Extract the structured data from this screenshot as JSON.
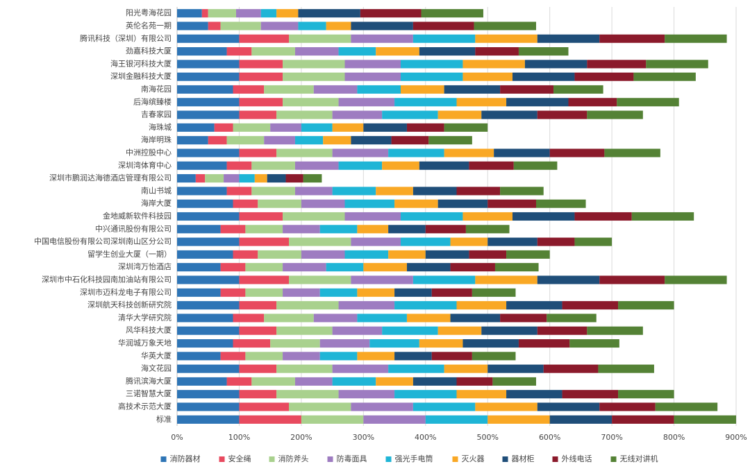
{
  "chart_data": {
    "type": "stacked_barh",
    "categories": [
      "阳光粤海花园",
      "英伦名苑一期",
      "腾讯科技（深圳）有限公司",
      "劲嘉科技大厦",
      "海王银河科技大厦",
      "深圳金融科技大厦",
      "南海花园",
      "后海缤臻楼",
      "吉春家园",
      "海珠城",
      "海岸明珠",
      "中洲控股中心",
      "深圳湾体育中心",
      "深圳市鹏润达海德酒店管理有限公司",
      "南山书城",
      "海岸大厦",
      "金地威新软件科技园",
      "中兴通讯股份有限公司",
      "中国电信股份有限公司深圳南山区分公司",
      "留学生创业大厦（一期）",
      "深圳湾万怡酒店",
      "深圳市中石化科技园南加油站有限公司",
      "深圳市迈科龙电子有限公司",
      "深圳航天科技创新研究院",
      "清华大学研究院",
      "风华科技大厦",
      "华润城万象天地",
      "华英大厦",
      "海文花园",
      "腾讯滨海大厦",
      "三诺智慧大厦",
      "高技术示范大厦",
      "标准"
    ],
    "series": [
      {
        "name": "消防器材",
        "color": "#2e75b6",
        "values": [
          40,
          50,
          100,
          80,
          100,
          100,
          90,
          100,
          100,
          60,
          50,
          100,
          80,
          30,
          80,
          90,
          100,
          70,
          100,
          90,
          70,
          100,
          70,
          100,
          90,
          100,
          90,
          70,
          100,
          80,
          100,
          100,
          100
        ]
      },
      {
        "name": "安全绳",
        "color": "#e84a5f",
        "values": [
          10,
          20,
          80,
          40,
          70,
          70,
          50,
          70,
          60,
          30,
          30,
          60,
          40,
          15,
          40,
          40,
          70,
          40,
          80,
          40,
          40,
          80,
          40,
          60,
          50,
          60,
          60,
          40,
          60,
          40,
          60,
          80,
          100
        ]
      },
      {
        "name": "消防斧头",
        "color": "#a9d18e",
        "values": [
          45,
          65,
          100,
          70,
          100,
          100,
          80,
          90,
          90,
          60,
          60,
          90,
          70,
          30,
          70,
          70,
          100,
          60,
          100,
          70,
          60,
          100,
          60,
          100,
          80,
          90,
          80,
          60,
          90,
          70,
          100,
          100,
          100
        ]
      },
      {
        "name": "防毒面具",
        "color": "#9e7cc1",
        "values": [
          40,
          60,
          100,
          70,
          90,
          90,
          70,
          90,
          80,
          50,
          50,
          90,
          70,
          25,
          60,
          70,
          90,
          60,
          80,
          70,
          70,
          100,
          60,
          90,
          70,
          80,
          80,
          60,
          90,
          60,
          90,
          100,
          100
        ]
      },
      {
        "name": "强光手电筒",
        "color": "#1fb5d6",
        "values": [
          25,
          45,
          100,
          60,
          100,
          100,
          70,
          100,
          90,
          50,
          45,
          90,
          70,
          25,
          70,
          80,
          100,
          60,
          80,
          70,
          60,
          100,
          60,
          100,
          80,
          90,
          80,
          60,
          90,
          70,
          100,
          100,
          100
        ]
      },
      {
        "name": "灭火器",
        "color": "#f9a825",
        "values": [
          35,
          40,
          100,
          70,
          100,
          80,
          70,
          80,
          70,
          50,
          45,
          80,
          60,
          20,
          60,
          70,
          80,
          50,
          60,
          60,
          70,
          100,
          60,
          80,
          70,
          70,
          70,
          60,
          70,
          60,
          80,
          100,
          100
        ]
      },
      {
        "name": "器材柜",
        "color": "#1f4e79",
        "values": [
          100,
          100,
          100,
          90,
          100,
          100,
          90,
          100,
          90,
          70,
          65,
          90,
          80,
          30,
          70,
          80,
          100,
          60,
          80,
          70,
          70,
          100,
          60,
          90,
          80,
          90,
          90,
          60,
          90,
          70,
          90,
          100,
          100
        ]
      },
      {
        "name": "外线电话",
        "color": "#8b1a2b",
        "values": [
          98,
          98,
          105,
          70,
          95,
          95,
          86,
          78,
          80,
          60,
          60,
          88,
          72,
          28,
          70,
          78,
          92,
          65,
          60,
          60,
          72,
          105,
          65,
          90,
          75,
          80,
          82,
          65,
          88,
          58,
          90,
          90,
          100
        ]
      },
      {
        "name": "无线对讲机",
        "color": "#548235",
        "values": [
          100,
          100,
          100,
          80,
          100,
          100,
          80,
          100,
          90,
          70,
          70,
          90,
          70,
          30,
          70,
          80,
          100,
          70,
          60,
          70,
          70,
          100,
          70,
          90,
          80,
          90,
          80,
          70,
          90,
          70,
          90,
          100,
          100
        ]
      }
    ],
    "xlim": [
      0,
      900
    ],
    "xticks": [
      {
        "value": 0,
        "label": "0%"
      },
      {
        "value": 100,
        "label": "100%"
      },
      {
        "value": 200,
        "label": "200%"
      },
      {
        "value": 300,
        "label": "300%"
      },
      {
        "value": 400,
        "label": "400%"
      },
      {
        "value": 500,
        "label": "500%"
      },
      {
        "value": 600,
        "label": "600%"
      },
      {
        "value": 700,
        "label": "700%"
      },
      {
        "value": 800,
        "label": "800%"
      },
      {
        "value": 900,
        "label": "900%"
      }
    ],
    "grid": true,
    "legend": "bottom"
  }
}
